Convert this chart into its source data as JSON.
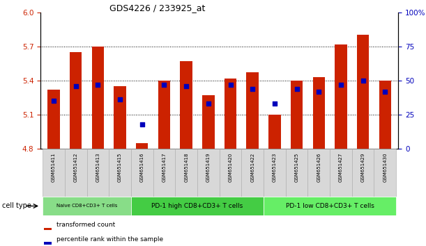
{
  "title": "GDS4226 / 233925_at",
  "samples": [
    "GSM651411",
    "GSM651412",
    "GSM651413",
    "GSM651415",
    "GSM651416",
    "GSM651417",
    "GSM651418",
    "GSM651419",
    "GSM651420",
    "GSM651422",
    "GSM651423",
    "GSM651425",
    "GSM651426",
    "GSM651427",
    "GSM651429",
    "GSM651430"
  ],
  "red_values": [
    5.32,
    5.65,
    5.7,
    5.35,
    4.85,
    5.4,
    5.57,
    5.27,
    5.42,
    5.47,
    5.1,
    5.4,
    5.43,
    5.72,
    5.8,
    5.4
  ],
  "blue_values": [
    35,
    46,
    47,
    36,
    18,
    47,
    46,
    33,
    47,
    44,
    33,
    44,
    42,
    47,
    50,
    42
  ],
  "ylim_left": [
    4.8,
    6.0
  ],
  "ylim_right": [
    0,
    100
  ],
  "yticks_left": [
    4.8,
    5.1,
    5.4,
    5.7,
    6.0
  ],
  "yticks_right": [
    0,
    25,
    50,
    75,
    100
  ],
  "bar_color": "#cc2200",
  "dot_color": "#0000bb",
  "background_color": "#ffffff",
  "grid_color": "#000000",
  "cell_type_groups": [
    {
      "label": "Naive CD8+CD3+ T cells",
      "start": 0,
      "end": 4,
      "color": "#88dd88"
    },
    {
      "label": "PD-1 high CD8+CD3+ T cells",
      "start": 4,
      "end": 10,
      "color": "#44cc44"
    },
    {
      "label": "PD-1 low CD8+CD3+ T cells",
      "start": 10,
      "end": 16,
      "color": "#66ee66"
    }
  ],
  "legend_items": [
    {
      "label": "transformed count",
      "color": "#cc2200"
    },
    {
      "label": "percentile rank within the sample",
      "color": "#0000bb"
    }
  ],
  "bar_width": 0.55,
  "cell_type_label": "cell type",
  "ylabel_left_color": "#cc2200",
  "ylabel_right_color": "#0000bb",
  "label_bg_color": "#d8d8d8",
  "label_border_color": "#aaaaaa"
}
